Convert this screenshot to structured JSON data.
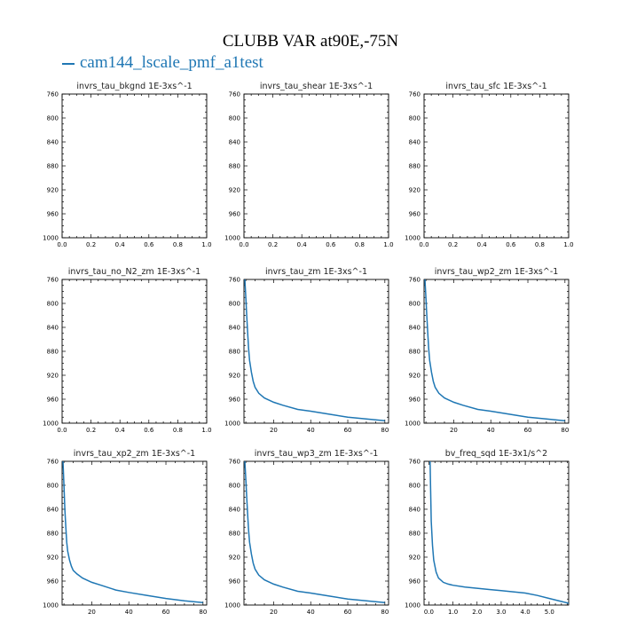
{
  "title": "CLUBB VAR at90E,-75N",
  "legend_label": "cam144_lscale_pmf_a1test",
  "colors": {
    "line": "#1f77b4",
    "axis": "#000000"
  },
  "chart_data": [
    {
      "type": "line",
      "title": "invrs_tau_bkgnd   1E-3xs^-1",
      "xlim": [
        0,
        1
      ],
      "ylim": [
        760,
        1000
      ],
      "xticks": [
        0.0,
        0.2,
        0.4,
        0.6,
        0.8,
        1.0
      ],
      "xticklabels": [
        "0.0",
        "0.2",
        "0.4",
        "0.6",
        "0.8",
        "1.0"
      ],
      "yticks": [
        760,
        800,
        840,
        880,
        920,
        960,
        1000
      ],
      "grid": false,
      "series": [
        {
          "name": "cam144_lscale_pmf_a1test",
          "x": [],
          "y": []
        }
      ]
    },
    {
      "type": "line",
      "title": "invrs_tau_shear   1E-3xs^-1",
      "xlim": [
        0,
        1
      ],
      "ylim": [
        760,
        1000
      ],
      "xticks": [
        0.0,
        0.2,
        0.4,
        0.6,
        0.8,
        1.0
      ],
      "xticklabels": [
        "0.0",
        "0.2",
        "0.4",
        "0.6",
        "0.8",
        "1.0"
      ],
      "yticks": [
        760,
        800,
        840,
        880,
        920,
        960,
        1000
      ],
      "grid": false,
      "series": [
        {
          "name": "cam144_lscale_pmf_a1test",
          "x": [],
          "y": []
        }
      ]
    },
    {
      "type": "line",
      "title": "invrs_tau_sfc   1E-3xs^-1",
      "xlim": [
        0,
        1
      ],
      "ylim": [
        760,
        1000
      ],
      "xticks": [
        0.0,
        0.2,
        0.4,
        0.6,
        0.8,
        1.0
      ],
      "xticklabels": [
        "0.0",
        "0.2",
        "0.4",
        "0.6",
        "0.8",
        "1.0"
      ],
      "yticks": [
        760,
        800,
        840,
        880,
        920,
        960,
        1000
      ],
      "grid": false,
      "series": [
        {
          "name": "cam144_lscale_pmf_a1test",
          "x": [],
          "y": []
        }
      ]
    },
    {
      "type": "line",
      "title": "invrs_tau_no_N2_zm   1E-3xs^-1",
      "xlim": [
        0,
        1
      ],
      "ylim": [
        760,
        1000
      ],
      "xticks": [
        0.0,
        0.2,
        0.4,
        0.6,
        0.8,
        1.0
      ],
      "xticklabels": [
        "0.0",
        "0.2",
        "0.4",
        "0.6",
        "0.8",
        "1.0"
      ],
      "yticks": [
        760,
        800,
        840,
        880,
        920,
        960,
        1000
      ],
      "grid": false,
      "series": [
        {
          "name": "cam144_lscale_pmf_a1test",
          "x": [],
          "y": []
        }
      ]
    },
    {
      "type": "line",
      "title": "invrs_tau_zm   1E-3xs^-1",
      "xlim": [
        4,
        82
      ],
      "ylim": [
        760,
        1000
      ],
      "xticks": [
        20,
        40,
        60,
        80
      ],
      "xticklabels": [
        "20",
        "40",
        "60",
        "80"
      ],
      "yticks": [
        760,
        800,
        840,
        880,
        920,
        960,
        1000
      ],
      "grid": false,
      "series": [
        {
          "name": "cam144_lscale_pmf_a1test",
          "x": [
            4.5,
            5.0,
            5.5,
            6.0,
            6.5,
            7.0,
            8.0,
            9.0,
            10.0,
            12.0,
            15.0,
            20.0,
            25.0,
            33.0,
            40.0,
            50.0,
            60.0,
            70.0,
            80.0
          ],
          "y": [
            760,
            790,
            820,
            850,
            875,
            895,
            915,
            930,
            940,
            950,
            958,
            965,
            970,
            977,
            980,
            985,
            990,
            993,
            996
          ]
        }
      ]
    },
    {
      "type": "line",
      "title": "invrs_tau_wp2_zm   1E-3xs^-1",
      "xlim": [
        4,
        82
      ],
      "ylim": [
        760,
        1000
      ],
      "xticks": [
        20,
        40,
        60,
        80
      ],
      "xticklabels": [
        "20",
        "40",
        "60",
        "80"
      ],
      "yticks": [
        760,
        800,
        840,
        880,
        920,
        960,
        1000
      ],
      "grid": false,
      "series": [
        {
          "name": "cam144_lscale_pmf_a1test",
          "x": [
            4.5,
            5.0,
            5.5,
            6.0,
            6.5,
            7.0,
            8.0,
            9.0,
            10.0,
            12.0,
            15.0,
            20.0,
            25.0,
            33.0,
            40.0,
            50.0,
            60.0,
            70.0,
            80.0
          ],
          "y": [
            760,
            790,
            820,
            850,
            875,
            895,
            915,
            930,
            940,
            950,
            958,
            965,
            970,
            977,
            980,
            985,
            990,
            993,
            996
          ]
        }
      ]
    },
    {
      "type": "line",
      "title": "invrs_tau_xp2_zm   1E-3xs^-1",
      "xlim": [
        4,
        82
      ],
      "ylim": [
        760,
        1000
      ],
      "xticks": [
        20,
        40,
        60,
        80
      ],
      "xticklabels": [
        "20",
        "40",
        "60",
        "80"
      ],
      "yticks": [
        760,
        800,
        840,
        880,
        920,
        960,
        1000
      ],
      "grid": false,
      "series": [
        {
          "name": "cam144_lscale_pmf_a1test",
          "x": [
            4.5,
            5.0,
            5.5,
            6.0,
            6.5,
            7.0,
            8.0,
            9.0,
            10.0,
            12.0,
            15.0,
            20.0,
            25.0,
            33.0,
            40.0,
            50.0,
            60.0,
            70.0,
            80.0
          ],
          "y": [
            760,
            800,
            840,
            870,
            895,
            910,
            925,
            935,
            942,
            948,
            955,
            962,
            967,
            975,
            979,
            984,
            989,
            993,
            996
          ]
        }
      ]
    },
    {
      "type": "line",
      "title": "invrs_tau_wp3_zm   1E-3xs^-1",
      "xlim": [
        4,
        82
      ],
      "ylim": [
        760,
        1000
      ],
      "xticks": [
        20,
        40,
        60,
        80
      ],
      "xticklabels": [
        "20",
        "40",
        "60",
        "80"
      ],
      "yticks": [
        760,
        800,
        840,
        880,
        920,
        960,
        1000
      ],
      "grid": false,
      "series": [
        {
          "name": "cam144_lscale_pmf_a1test",
          "x": [
            4.5,
            5.0,
            5.5,
            6.0,
            6.5,
            7.0,
            8.0,
            9.0,
            10.0,
            12.0,
            15.0,
            20.0,
            25.0,
            33.0,
            40.0,
            50.0,
            60.0,
            70.0,
            80.0
          ],
          "y": [
            760,
            790,
            820,
            850,
            875,
            895,
            915,
            930,
            940,
            950,
            958,
            965,
            970,
            977,
            980,
            985,
            990,
            993,
            996
          ]
        }
      ]
    },
    {
      "type": "line",
      "title": "bv_freq_sqd   1E-3x1/s^2",
      "xlim": [
        -0.2,
        5.8
      ],
      "ylim": [
        760,
        1000
      ],
      "xticks": [
        0.0,
        1.0,
        2.0,
        3.0,
        4.0,
        5.0
      ],
      "xticklabels": [
        "0.0",
        "1.0",
        "2.0",
        "3.0",
        "4.0",
        "5.0"
      ],
      "yticks": [
        760,
        800,
        840,
        880,
        920,
        960,
        1000
      ],
      "grid": false,
      "series": [
        {
          "name": "cam144_lscale_pmf_a1test",
          "x": [
            0.05,
            0.07,
            0.1,
            0.15,
            0.2,
            0.3,
            0.4,
            0.6,
            0.8,
            1.0,
            1.5,
            2.0,
            2.5,
            3.0,
            3.5,
            4.0,
            4.5,
            5.0,
            5.5,
            5.8
          ],
          "y": [
            760,
            800,
            860,
            900,
            925,
            945,
            955,
            962,
            965,
            967,
            970,
            972,
            974,
            976,
            978,
            980,
            984,
            989,
            994,
            997
          ]
        }
      ]
    }
  ]
}
